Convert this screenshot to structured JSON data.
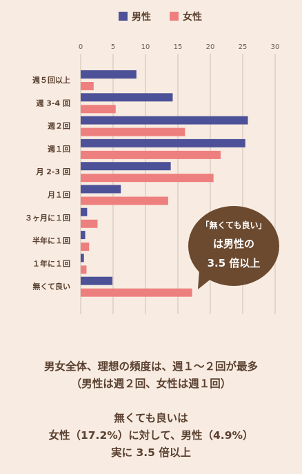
{
  "chart_data": {
    "type": "bar",
    "orientation": "horizontal",
    "categories": [
      "週５回以上",
      "週 3-4 回",
      "週２回",
      "週１回",
      "月 2-3 回",
      "月１回",
      "３ヶ月に１回",
      "半年に１回",
      "１年に１回",
      "無くて良い"
    ],
    "series": [
      {
        "name": "男性",
        "color": "#4d5198",
        "values": [
          8.6,
          14.2,
          25.8,
          25.4,
          13.9,
          6.2,
          1.0,
          0.7,
          0.5,
          4.9
        ]
      },
      {
        "name": "女性",
        "color": "#ee7f7f",
        "values": [
          2.0,
          5.4,
          16.1,
          21.6,
          20.5,
          13.5,
          2.6,
          1.3,
          0.9,
          17.2
        ]
      }
    ],
    "xlim": [
      0,
      30
    ],
    "xticks": [
      "0",
      "5",
      "10",
      "15",
      "20",
      "25",
      "30"
    ],
    "grid": true,
    "legend_position": "top"
  },
  "annotation": {
    "line1": "「無くても良い」",
    "line2": "は男性の",
    "line3": "3.5 倍以上",
    "color": "#6b4a30"
  },
  "caption1": {
    "line1": "男女全体、理想の頻度は、週１〜２回が最多",
    "line2": "（男性は週２回、女性は週１回）"
  },
  "caption2": {
    "line1": "無くても良いは",
    "line2": "女性（17.2%）に対して、男性（4.9%）",
    "line3": "実に 3.5 倍以上"
  }
}
